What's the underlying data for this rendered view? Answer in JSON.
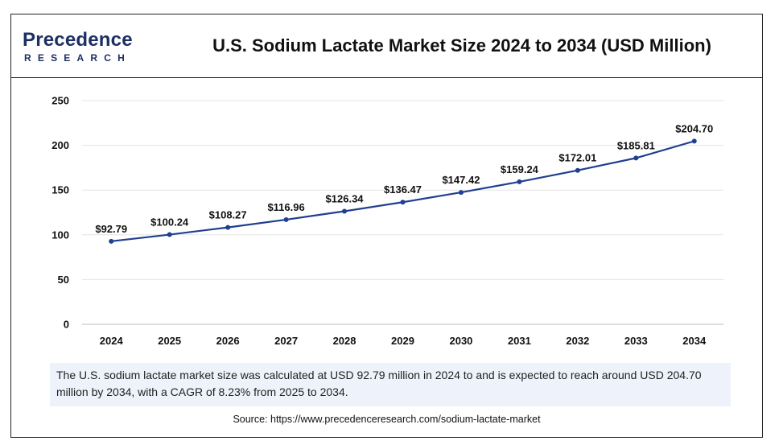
{
  "logo": {
    "top": "Precedence",
    "bottom": "RESEARCH"
  },
  "chart_data": {
    "type": "line",
    "title": "U.S. Sodium Lactate Market Size 2024 to 2034 (USD Million)",
    "x": [
      "2024",
      "2025",
      "2026",
      "2027",
      "2028",
      "2029",
      "2030",
      "2031",
      "2032",
      "2033",
      "2034"
    ],
    "values": [
      92.79,
      100.24,
      108.27,
      116.96,
      126.34,
      136.47,
      147.42,
      159.24,
      172.01,
      185.81,
      204.7
    ],
    "data_labels": [
      "$92.79",
      "$100.24",
      "$108.27",
      "$116.96",
      "$126.34",
      "$136.47",
      "$147.42",
      "$159.24",
      "$172.01",
      "$185.81",
      "$204.70"
    ],
    "ylim": [
      0,
      250
    ],
    "yticks": [
      0,
      50,
      100,
      150,
      200,
      250
    ],
    "grid": true,
    "line_color": "#1f3f8f"
  },
  "summary": "The U.S. sodium lactate market size was calculated at USD 92.79 million in 2024 to and is expected to reach around USD 204.70 million by 2034, with a CAGR of 8.23% from 2025 to 2034.",
  "source": "Source: https://www.precedenceresearch.com/sodium-lactate-market"
}
